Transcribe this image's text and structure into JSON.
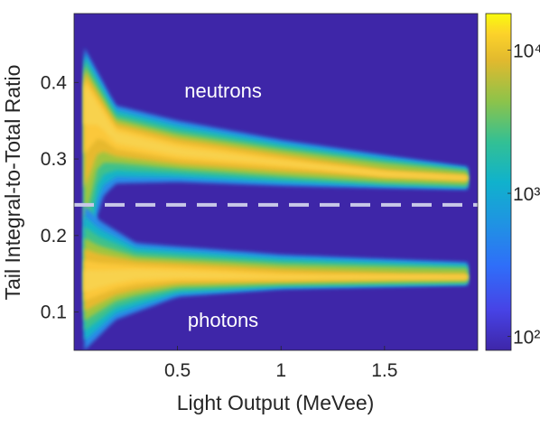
{
  "chart_data": {
    "type": "heatmap",
    "xlabel": "Light Output (MeVee)",
    "ylabel": "Tail Integral-to-Total Ratio",
    "xlim": [
      0.0,
      1.95
    ],
    "ylim": [
      0.05,
      0.49
    ],
    "x_ticks": [
      0.5,
      1,
      1.5
    ],
    "x_tick_labels": [
      "0.5",
      "1",
      "1.5"
    ],
    "y_ticks": [
      0.1,
      0.2,
      0.3,
      0.4
    ],
    "y_tick_labels": [
      "0.1",
      "0.2",
      "0.3",
      "0.4"
    ],
    "colorbar": {
      "scale": "log",
      "range": [
        80,
        18000
      ],
      "tick_labels": [
        "10²",
        "10³",
        "10⁴"
      ],
      "tick_values": [
        100,
        1000,
        10000
      ],
      "colormap": "parula"
    },
    "annotations": [
      {
        "text": "neutrons",
        "x": 0.72,
        "y": 0.39
      },
      {
        "text": "photons",
        "x": 0.72,
        "y": 0.09
      }
    ],
    "discrimination_line": {
      "y": 0.24,
      "style": "dashed",
      "color": "#c8c8e8"
    },
    "bands": [
      {
        "name": "neutrons",
        "center": [
          [
            0.05,
            0.39
          ],
          [
            0.2,
            0.33
          ],
          [
            0.5,
            0.31
          ],
          [
            1.0,
            0.295
          ],
          [
            1.5,
            0.28
          ],
          [
            1.9,
            0.275
          ]
        ],
        "outer_upper": [
          [
            0.05,
            0.445
          ],
          [
            0.2,
            0.37
          ],
          [
            0.5,
            0.35
          ],
          [
            1.0,
            0.325
          ],
          [
            1.5,
            0.305
          ],
          [
            1.9,
            0.29
          ]
        ],
        "outer_lower": [
          [
            0.05,
            0.09
          ],
          [
            0.12,
            0.245
          ],
          [
            0.2,
            0.268
          ],
          [
            0.5,
            0.27
          ],
          [
            1.0,
            0.265
          ],
          [
            1.5,
            0.262
          ],
          [
            1.9,
            0.26
          ]
        ]
      },
      {
        "name": "photons",
        "center": [
          [
            0.05,
            0.14
          ],
          [
            0.3,
            0.15
          ],
          [
            1.0,
            0.145
          ],
          [
            1.9,
            0.145
          ]
        ],
        "outer_upper": [
          [
            0.05,
            0.24
          ],
          [
            0.12,
            0.22
          ],
          [
            0.3,
            0.19
          ],
          [
            1.0,
            0.175
          ],
          [
            1.9,
            0.165
          ]
        ],
        "outer_lower": [
          [
            0.05,
            0.05
          ],
          [
            0.2,
            0.09
          ],
          [
            0.5,
            0.12
          ],
          [
            1.0,
            0.13
          ],
          [
            1.9,
            0.135
          ]
        ]
      }
    ],
    "colors": {
      "background": "#3e26a8",
      "ticks": "#262626"
    }
  }
}
